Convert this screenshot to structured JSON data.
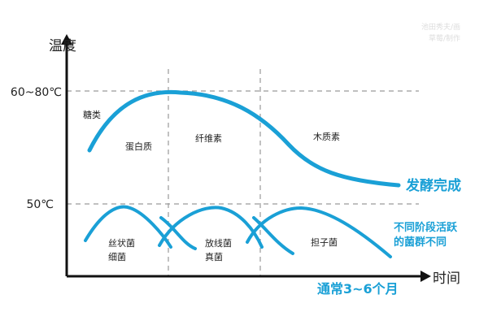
{
  "watermark": {
    "line1": "池田秀夫/画",
    "line2": "草莓/制作"
  },
  "axes": {
    "y_label": "温度",
    "x_label": "时间"
  },
  "temperature_marks": {
    "high": "60~80℃",
    "mid": "50℃"
  },
  "nutrients": {
    "sugar": "糖类",
    "protein": "蛋白质",
    "fiber": "纤维素",
    "lignin": "木质素"
  },
  "microbes": {
    "filamentous_line1": "丝状菌",
    "filamentous_line2": "细菌",
    "actinomyces_line1": "放线菌",
    "actinomyces_line2": "真菌",
    "basidiomycete": "担子菌"
  },
  "annotations": {
    "done": "发酵完成",
    "microbe_note_line1": "不同阶段活跃",
    "microbe_note_line2": "的菌群不同",
    "duration": "通常3~6个月"
  },
  "colors": {
    "curve": "#1aa0d6",
    "axis": "#111111",
    "grid": "#9a9a9a"
  }
}
